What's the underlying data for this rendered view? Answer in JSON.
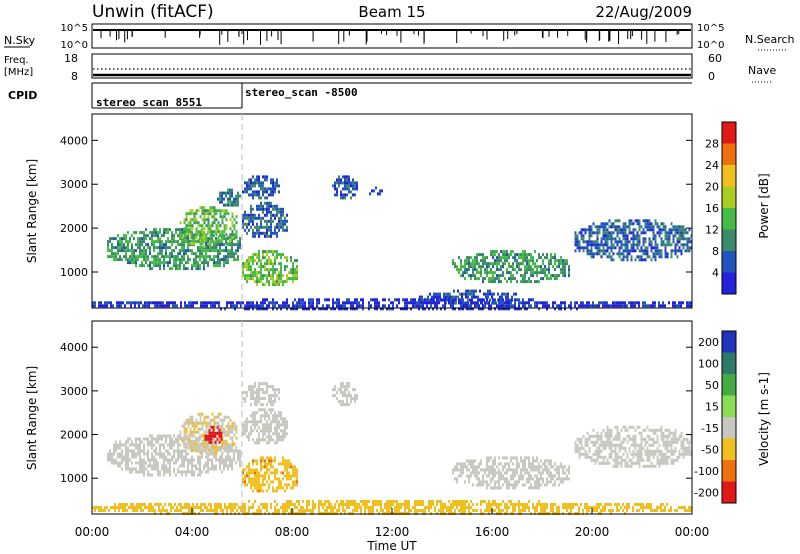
{
  "header": {
    "station": "Unwin (fitACF)",
    "beam": "Beam 15",
    "date": "22/Aug/2009"
  },
  "noise_panel": {
    "left_label": "N.Sky",
    "right_label": "N.Search",
    "left_ticks": [
      "10^5",
      "10^0"
    ],
    "right_ticks": [
      "10^5",
      "10^0"
    ]
  },
  "freq_panel": {
    "left_label_1": "Freq.",
    "left_label_2": "[MHz]",
    "right_label": "Nave",
    "left_ticks": [
      "18",
      "8"
    ],
    "right_ticks": [
      "60",
      "0"
    ]
  },
  "cpid_panel": {
    "label": "CPID",
    "segments": [
      {
        "name": "stereo_scan 8551",
        "start_hour": 0,
        "end_hour": 6
      },
      {
        "name": "stereo_scan -8500",
        "start_hour": 6,
        "end_hour": 24
      }
    ]
  },
  "time_axis": {
    "label": "Time UT",
    "ticks": [
      "00:00",
      "04:00",
      "08:00",
      "12:00",
      "16:00",
      "20:00",
      "00:00"
    ],
    "range_hours": [
      0,
      24
    ]
  },
  "chart_data": [
    {
      "type": "heatmap",
      "parameter": "Power",
      "colorbar_label": "Power [dB]",
      "ylabel": "Slant Range [km]",
      "ylim": [
        180,
        4600
      ],
      "y_ticks": [
        "1000",
        "2000",
        "3000",
        "4000"
      ],
      "colorbar_ticks": [
        "4",
        "8",
        "12",
        "16",
        "20",
        "24",
        "28"
      ],
      "colorbar_range": [
        0,
        32
      ],
      "colors": [
        "#2222dd",
        "#2255bb",
        "#3c8a6a",
        "#44bb44",
        "#aacc22",
        "#f0c020",
        "#f07010",
        "#e01818"
      ],
      "regions": [
        {
          "t": [
            0.6,
            5.9
          ],
          "r": [
            1100,
            2000
          ],
          "value": 11
        },
        {
          "t": [
            3.5,
            5.8
          ],
          "r": [
            1600,
            2500
          ],
          "value": 14
        },
        {
          "t": [
            5.0,
            5.9
          ],
          "r": [
            2500,
            2900
          ],
          "value": 9
        },
        {
          "t": [
            6.0,
            8.2
          ],
          "r": [
            700,
            1500
          ],
          "value": 15
        },
        {
          "t": [
            6.0,
            7.8
          ],
          "r": [
            1800,
            2600
          ],
          "value": 7
        },
        {
          "t": [
            6.0,
            7.5
          ],
          "r": [
            2700,
            3200
          ],
          "value": 6
        },
        {
          "t": [
            9.6,
            10.6
          ],
          "r": [
            2700,
            3200
          ],
          "value": 6
        },
        {
          "t": [
            11.0,
            11.6
          ],
          "r": [
            2750,
            2950
          ],
          "value": 5
        },
        {
          "t": [
            14.4,
            19.1
          ],
          "r": [
            800,
            1500
          ],
          "value": 11
        },
        {
          "t": [
            19.3,
            24.0
          ],
          "r": [
            1300,
            2200
          ],
          "value": 7
        },
        {
          "t": [
            13.0,
            17.0
          ],
          "r": [
            300,
            600
          ],
          "value": 5
        },
        {
          "t": [
            0.0,
            24.0
          ],
          "r": [
            190,
            400
          ],
          "value": 3
        }
      ]
    },
    {
      "type": "heatmap",
      "parameter": "Velocity",
      "colorbar_label": "Velocity [m s-1]",
      "ylabel": "Slant Range [km]",
      "ylim": [
        180,
        4600
      ],
      "y_ticks": [
        "1000",
        "2000",
        "3000",
        "4000"
      ],
      "colorbar_ticks": [
        "200",
        "100",
        "50",
        "15",
        "-15",
        "-50",
        "-100",
        "-200"
      ],
      "colors": [
        "#2233bb",
        "#2e7a6a",
        "#44aa44",
        "#88dd55",
        "#c8c8c0",
        "#f0c020",
        "#f07010",
        "#e01818"
      ],
      "regions": [
        {
          "t": [
            0.6,
            5.9
          ],
          "r": [
            1100,
            2000
          ],
          "value": 0
        },
        {
          "t": [
            3.5,
            5.8
          ],
          "r": [
            1600,
            2500
          ],
          "value": -10
        },
        {
          "t": [
            4.5,
            5.2
          ],
          "r": [
            1800,
            2200
          ],
          "value": -150
        },
        {
          "t": [
            6.0,
            8.2
          ],
          "r": [
            700,
            1500
          ],
          "value": -40
        },
        {
          "t": [
            6.0,
            7.8
          ],
          "r": [
            1800,
            2600
          ],
          "value": 0
        },
        {
          "t": [
            6.0,
            7.5
          ],
          "r": [
            2700,
            3200
          ],
          "value": 0
        },
        {
          "t": [
            9.6,
            10.6
          ],
          "r": [
            2700,
            3200
          ],
          "value": 0
        },
        {
          "t": [
            14.4,
            19.1
          ],
          "r": [
            800,
            1500
          ],
          "value": 0
        },
        {
          "t": [
            19.3,
            24.0
          ],
          "r": [
            1300,
            2200
          ],
          "value": 0
        },
        {
          "t": [
            0.0,
            24.0
          ],
          "r": [
            190,
            500
          ],
          "value": -30
        }
      ]
    }
  ]
}
